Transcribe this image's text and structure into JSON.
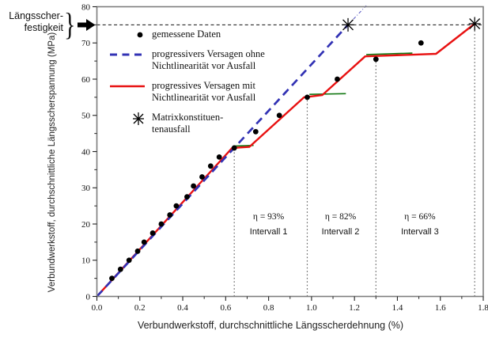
{
  "figure": {
    "strength_label": "Längsscher-\nfestigkeit",
    "brace_glyph": "}",
    "xlabel": "Verbundwerkstoff, durchschnittliche Längsscherdehnung (%)",
    "ylabel": "Verbundwerkstoff, durchschnittliche Längsscherspannung (MPa)"
  },
  "legend": {
    "items": [
      {
        "label": "gemessene Daten",
        "marker": "black-dot"
      },
      {
        "label": "progressivers Versagen ohne\nNichtlinearität vor Ausfall",
        "marker": "blue-dashed-line"
      },
      {
        "label": "progressives Versagen mit\nNichtlinearität vor Ausfall",
        "marker": "red-solid-line"
      },
      {
        "label": "Matrixkonstituen-\ntenausfall",
        "marker": "asterisk"
      }
    ]
  },
  "chart_data": {
    "type": "line",
    "title": "",
    "xlabel": "Verbundwerkstoff, durchschnittliche Längsscherdehnung (%)",
    "ylabel": "Verbundwerkstoff, durchschnittliche Längsscherspannung (MPa)",
    "xlim": [
      0,
      1.8
    ],
    "ylim": [
      0,
      80
    ],
    "x_ticks": [
      0.0,
      0.2,
      0.4,
      0.6,
      0.8,
      1.0,
      1.2,
      1.4,
      1.6,
      1.8
    ],
    "x_minor_step": 0.1,
    "y_ticks": [
      0,
      10,
      20,
      30,
      40,
      50,
      60,
      70,
      80
    ],
    "y_minor_step": 5,
    "grid": false,
    "legend_position": "upper-left-inside",
    "colors": {
      "blue": "#3232b4",
      "red": "#e81111",
      "green": "#117711",
      "black": "#000000"
    },
    "strength_line": {
      "y": 75,
      "label": "Längsscherfestigkeit"
    },
    "series": [
      {
        "name": "gemessene Daten",
        "style": "scatter",
        "color": "#000000",
        "z": 4,
        "points": [
          [
            0.07,
            5
          ],
          [
            0.11,
            7.5
          ],
          [
            0.15,
            10
          ],
          [
            0.19,
            12.5
          ],
          [
            0.22,
            15
          ],
          [
            0.26,
            17.5
          ],
          [
            0.3,
            20
          ],
          [
            0.34,
            22.5
          ],
          [
            0.37,
            25
          ],
          [
            0.42,
            27.5
          ],
          [
            0.45,
            30.5
          ],
          [
            0.49,
            33
          ],
          [
            0.53,
            36
          ],
          [
            0.57,
            38.5
          ],
          [
            0.64,
            41
          ],
          [
            0.74,
            45.5
          ],
          [
            0.85,
            50
          ],
          [
            0.98,
            55
          ],
          [
            1.12,
            60
          ],
          [
            1.3,
            65.5
          ],
          [
            1.51,
            70
          ]
        ]
      },
      {
        "name": "progressivers Versagen ohne Nichtlinearität vor Ausfall",
        "style": "dashed-line",
        "color": "#3232b4",
        "z": 3,
        "points": [
          [
            0,
            0
          ],
          [
            1.17,
            75
          ]
        ],
        "extension": [
          [
            1.17,
            75
          ],
          [
            1.255,
            80.3
          ]
        ]
      },
      {
        "name": "progressives Versagen mit Nichtlinearität vor Ausfall",
        "style": "solid-line",
        "color": "#e81111",
        "z": 2,
        "points": [
          [
            0,
            0
          ],
          [
            0.63,
            41
          ],
          [
            0.71,
            41.3
          ],
          [
            0.965,
            55
          ],
          [
            1.05,
            55.6
          ],
          [
            1.25,
            66.3
          ],
          [
            1.58,
            67
          ],
          [
            1.76,
            75.3
          ]
        ]
      },
      {
        "name": "Matrixkonstituentenausfall",
        "style": "asterisk",
        "color": "#000000",
        "z": 5,
        "points": [
          [
            1.17,
            75
          ],
          [
            1.76,
            75.3
          ]
        ]
      }
    ],
    "hidden_segments": [
      {
        "color": "#117711",
        "points": [
          [
            0.635,
            41.5
          ],
          [
            0.73,
            41.7
          ]
        ]
      },
      {
        "color": "#117711",
        "points": [
          [
            0.99,
            55.8
          ],
          [
            1.16,
            56.0
          ]
        ]
      },
      {
        "color": "#117711",
        "points": [
          [
            1.255,
            66.8
          ],
          [
            1.47,
            67.2
          ]
        ]
      }
    ],
    "interval_lines": [
      {
        "x": 0.64,
        "top": 41
      },
      {
        "x": 0.98,
        "top": 55
      },
      {
        "x": 1.3,
        "top": 65.5
      },
      {
        "x": 1.76,
        "top": 75.3
      }
    ],
    "annotations": [
      {
        "eta": "η = 93%",
        "interval": "Intervall 1",
        "x": 0.8,
        "y": 22
      },
      {
        "eta": "η = 82%",
        "interval": "Intervall 2",
        "x": 1.135,
        "y": 22
      },
      {
        "eta": "η = 66%",
        "interval": "Intervall 3",
        "x": 1.505,
        "y": 22
      }
    ]
  }
}
